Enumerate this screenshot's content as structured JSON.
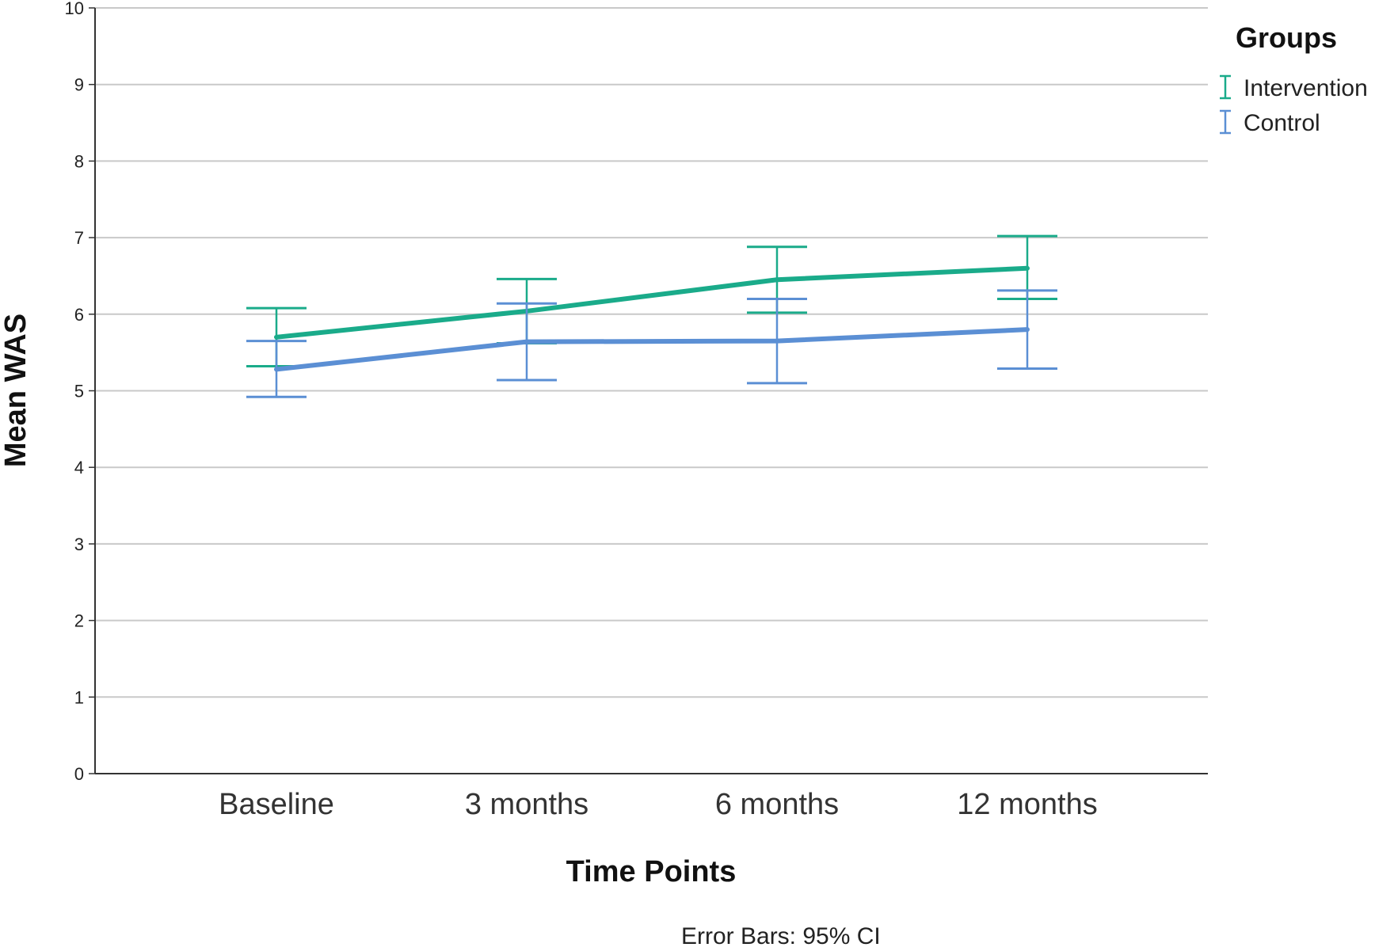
{
  "chart_data": {
    "type": "line",
    "title": "",
    "xlabel": "Time Points",
    "ylabel": "Mean WAS",
    "categories": [
      "Baseline",
      "3 months",
      "6 months",
      "12 months"
    ],
    "ylim": [
      0,
      10
    ],
    "yticks": [
      "0",
      "1",
      "2",
      "3",
      "4",
      "5",
      "6",
      "7",
      "8",
      "9",
      "10"
    ],
    "grid": true,
    "legend": {
      "title": "Groups",
      "position": "top-right"
    },
    "series": [
      {
        "name": "Intervention",
        "color": "#1aab8a",
        "values": [
          5.7,
          6.04,
          6.45,
          6.6
        ],
        "ci_lower": [
          5.32,
          5.62,
          6.02,
          6.2
        ],
        "ci_upper": [
          6.08,
          6.46,
          6.88,
          7.02
        ]
      },
      {
        "name": "Control",
        "color": "#5b8fd4",
        "values": [
          5.28,
          5.64,
          5.65,
          5.8
        ],
        "ci_lower": [
          4.92,
          5.14,
          5.1,
          5.29
        ],
        "ci_upper": [
          5.65,
          6.14,
          6.2,
          6.31
        ]
      }
    ],
    "footnote": "Error Bars: 95% CI"
  }
}
